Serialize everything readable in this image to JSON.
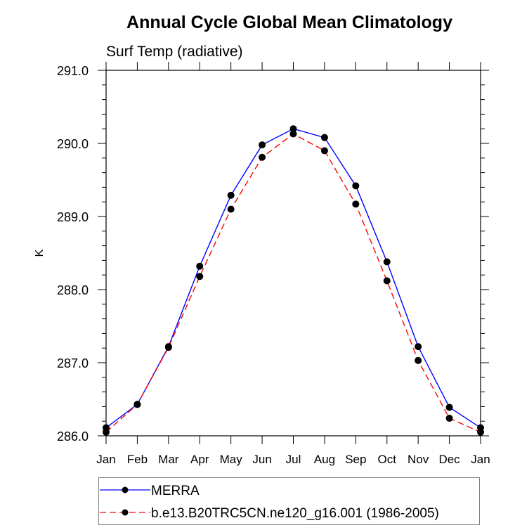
{
  "chart_data": {
    "type": "line",
    "title": "Annual Cycle Global Mean Climatology",
    "subtitle": "Surf Temp (radiative)",
    "xlabel": "",
    "ylabel": "K",
    "categories": [
      "Jan",
      "Feb",
      "Mar",
      "Apr",
      "May",
      "Jun",
      "Jul",
      "Aug",
      "Sep",
      "Oct",
      "Nov",
      "Dec",
      "Jan"
    ],
    "ylim": [
      286.0,
      291.0
    ],
    "yticks": [
      286.0,
      287.0,
      288.0,
      289.0,
      290.0,
      291.0
    ],
    "ytick_labels": [
      "286.0",
      "287.0",
      "288.0",
      "289.0",
      "290.0",
      "291.0"
    ],
    "y_minor_step": 0.2,
    "grid": false,
    "legend_position": "bottom",
    "series": [
      {
        "name": "MERRA",
        "color": "#0000ff",
        "style": "solid",
        "marker": "filled-circle",
        "values": [
          286.11,
          286.43,
          287.22,
          288.32,
          289.29,
          289.98,
          290.2,
          290.08,
          289.42,
          288.38,
          287.22,
          286.39,
          286.11
        ]
      },
      {
        "name": "b.e13.B20TRC5CN.ne120_g16.001 (1986-2005)",
        "color": "#ff0000",
        "style": "dashed",
        "marker": "filled-circle",
        "values": [
          286.05,
          286.43,
          287.21,
          288.18,
          289.1,
          289.81,
          290.13,
          289.9,
          289.17,
          288.12,
          287.03,
          286.24,
          286.05
        ]
      }
    ]
  }
}
